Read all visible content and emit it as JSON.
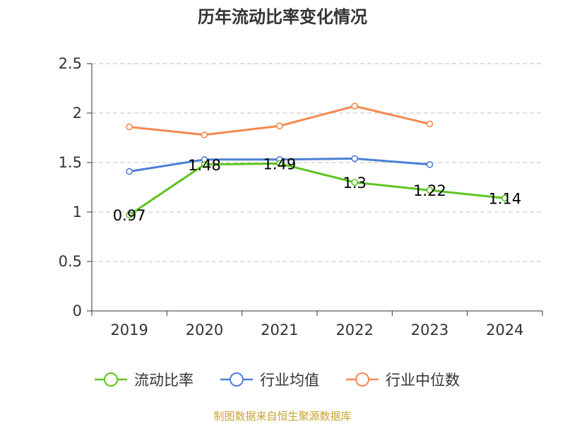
{
  "chart_data": {
    "type": "line",
    "title": "历年流动比率变化情况",
    "categories": [
      "2019",
      "2020",
      "2021",
      "2022",
      "2023",
      "2024"
    ],
    "ylim": [
      0,
      2.5
    ],
    "yticks": [
      "0",
      "0.5",
      "1",
      "1.5",
      "2",
      "2.5"
    ],
    "ytick_values": [
      0,
      0.5,
      1,
      1.5,
      2,
      2.5
    ],
    "grid": true,
    "legend_position": "bottom",
    "series": [
      {
        "name": "流动比率",
        "color": "#5ec41f",
        "values": [
          0.97,
          1.48,
          1.49,
          1.3,
          1.22,
          1.14
        ],
        "labels": [
          "0.97",
          "1.48",
          "1.49",
          "1.3",
          "1.22",
          "1.14"
        ]
      },
      {
        "name": "行业均值",
        "color": "#4b7fd6",
        "values": [
          1.41,
          1.53,
          1.53,
          1.54,
          1.48,
          null
        ]
      },
      {
        "name": "行业中位数",
        "color": "#f5894f",
        "values": [
          1.86,
          1.78,
          1.87,
          2.07,
          1.89,
          null
        ]
      }
    ]
  },
  "source": "制图数据来自恒生聚源数据库"
}
